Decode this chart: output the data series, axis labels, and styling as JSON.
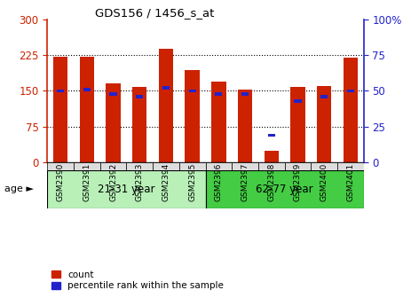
{
  "title": "GDS156 / 1456_s_at",
  "samples": [
    "GSM2390",
    "GSM2391",
    "GSM2392",
    "GSM2393",
    "GSM2394",
    "GSM2395",
    "GSM2396",
    "GSM2397",
    "GSM2398",
    "GSM2399",
    "GSM2400",
    "GSM2401"
  ],
  "count_values": [
    222,
    222,
    165,
    158,
    238,
    193,
    170,
    153,
    25,
    158,
    160,
    220
  ],
  "percentile_values": [
    50,
    51,
    48,
    46,
    52,
    50,
    48,
    48,
    19,
    43,
    46,
    50
  ],
  "red_color": "#cc2200",
  "blue_color": "#2222cc",
  "left_ylim": [
    0,
    300
  ],
  "right_ylim": [
    0,
    100
  ],
  "left_yticks": [
    0,
    75,
    150,
    225,
    300
  ],
  "right_yticks": [
    0,
    25,
    50,
    75,
    100
  ],
  "right_yticklabels": [
    "0",
    "25",
    "50",
    "75",
    "100%"
  ],
  "age_groups": [
    {
      "label": "21-31 year",
      "start": 0,
      "end": 6,
      "color": "#b8f0b8"
    },
    {
      "label": "62-77 year",
      "start": 6,
      "end": 12,
      "color": "#44cc44"
    }
  ],
  "age_label": "age ►",
  "legend_count": "count",
  "legend_percentile": "percentile rank within the sample",
  "bar_width": 0.55,
  "xtick_bg": "#dddddd",
  "background_color": "#ffffff"
}
